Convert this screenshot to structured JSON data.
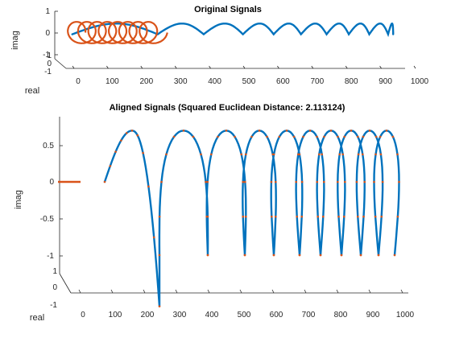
{
  "chart_data": [
    {
      "type": "line",
      "view": "3d",
      "title": "Original Signals",
      "xlabel": "real",
      "ylabel": "imag",
      "xlim": [
        0,
        1000
      ],
      "ylim_imag": [
        -1,
        1
      ],
      "zlim_real": [
        -1,
        1
      ],
      "x_ticks": [
        "0",
        "100",
        "200",
        "300",
        "400",
        "500",
        "600",
        "700",
        "800",
        "900",
        "1000"
      ],
      "imag_ticks": [
        "1",
        "0",
        "-1"
      ],
      "real_ticks": [
        "1",
        "0",
        "-1"
      ],
      "series": [
        {
          "color": "#0072BD",
          "sample_count": 940,
          "x_range": [
            0,
            940
          ],
          "arches_start": [
            0,
            250,
            385,
            500,
            590,
            670,
            745,
            810,
            870,
            925
          ],
          "peak_imag": 0.7,
          "base_imag": -0.2
        },
        {
          "color": "#D95319",
          "sample_count": 300,
          "x_range": [
            0,
            300
          ],
          "loops": 8,
          "amplitude": 0.7
        }
      ]
    },
    {
      "type": "line",
      "view": "3d",
      "title": "Aligned Signals (Squared Euclidean Distance: 2.113124)",
      "xlabel": "real",
      "ylabel": "imag",
      "xlim": [
        0,
        1000
      ],
      "ylim_imag": [
        -1,
        0.7
      ],
      "zlim_real": [
        -1,
        1
      ],
      "x_ticks": [
        "0",
        "100",
        "200",
        "300",
        "400",
        "500",
        "600",
        "700",
        "800",
        "900",
        "1000"
      ],
      "imag_ticks": [
        "0.5",
        "0",
        "-0.5",
        "-1"
      ],
      "real_ticks": [
        "1",
        "0",
        "-1"
      ],
      "series": [
        {
          "color": "#0072BD",
          "x_range": [
            0,
            950
          ],
          "arches_start": [
            -15,
            240,
            390,
            510,
            600,
            680,
            750,
            820,
            880,
            940
          ],
          "peak_imag": 0.7,
          "base_imag": -1
        },
        {
          "color": "#D95319",
          "x_range": [
            0,
            950
          ],
          "flat_segment": [
            [
              -30,
              0
            ],
            [
              0,
              0
            ]
          ],
          "overlays": "blue"
        }
      ]
    }
  ]
}
